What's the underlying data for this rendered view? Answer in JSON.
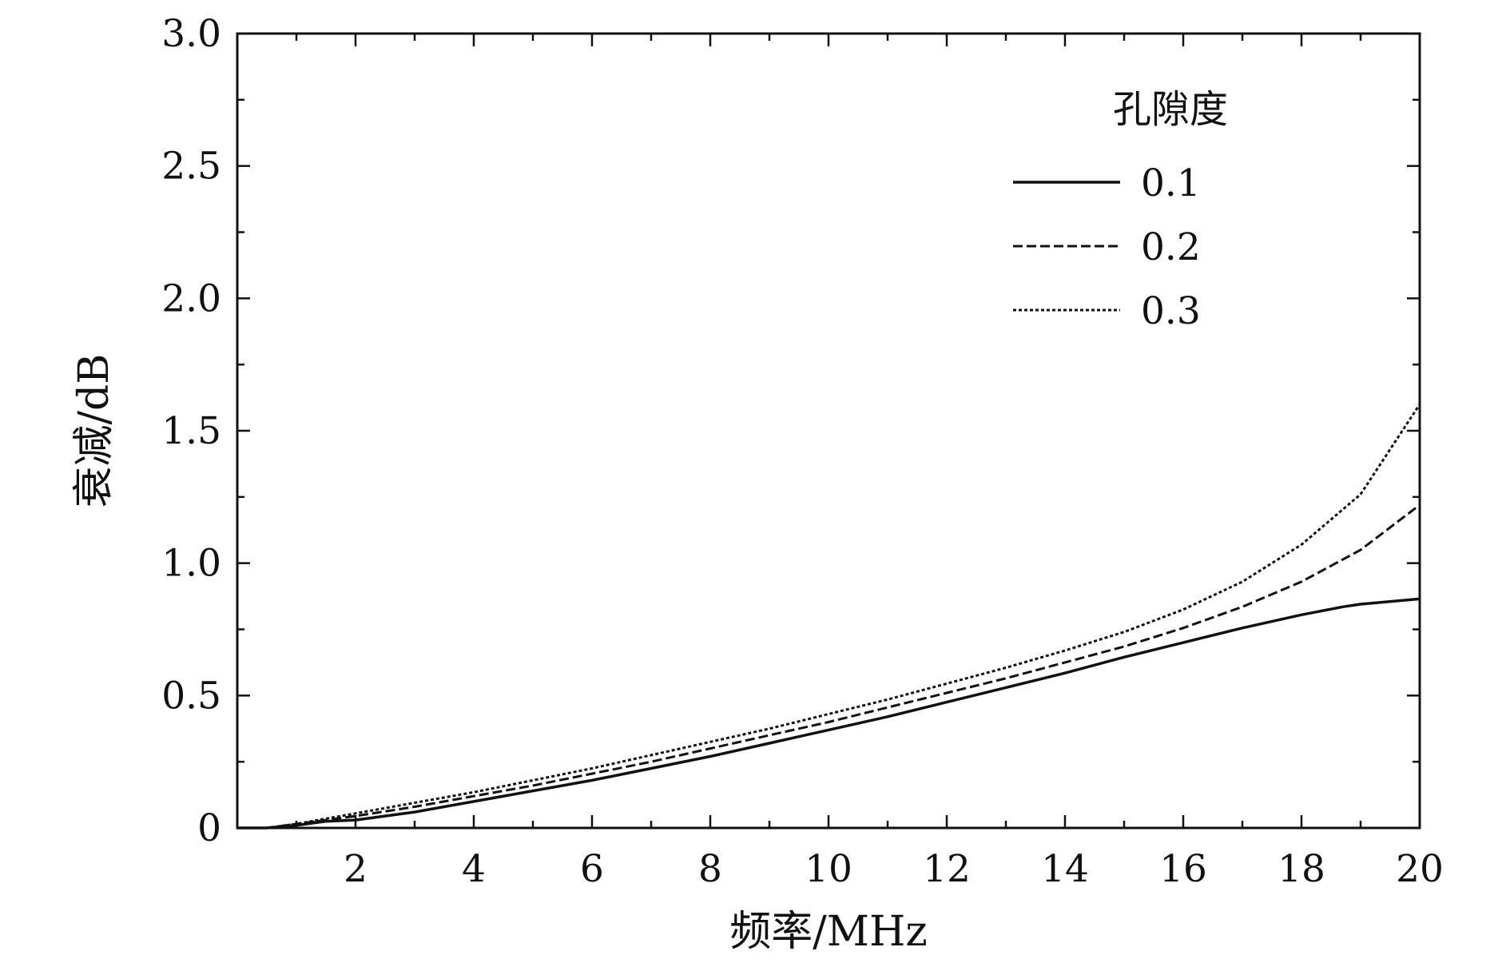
{
  "chart_data": {
    "type": "line",
    "xlabel": "频率/MHz",
    "ylabel": "衰减/dB",
    "xlim": [
      0,
      20
    ],
    "ylim": [
      0,
      3.0
    ],
    "x_ticks": [
      2,
      4,
      6,
      8,
      10,
      12,
      14,
      16,
      18,
      20
    ],
    "x_tick_labels": [
      "2",
      "4",
      "6",
      "8",
      "10",
      "12",
      "14",
      "16",
      "18",
      "20"
    ],
    "y_ticks": [
      0,
      0.5,
      1.0,
      1.5,
      2.0,
      2.5,
      3.0
    ],
    "y_tick_labels": [
      "0",
      "0.5",
      "1.0",
      "1.5",
      "2.0",
      "2.5",
      "3.0"
    ],
    "grid": false,
    "legend": {
      "title": "孔隙度",
      "placement": "top-right"
    },
    "series": [
      {
        "name": "0.1",
        "line_style": "solid",
        "x": [
          0,
          0.5,
          1,
          1.5,
          2,
          3,
          4,
          5,
          6,
          7,
          8,
          9,
          10,
          11,
          12,
          13,
          14,
          15,
          16,
          17,
          18,
          18.7,
          19,
          20
        ],
        "y": [
          0,
          0.0,
          0.01,
          0.025,
          0.03,
          0.06,
          0.1,
          0.14,
          0.18,
          0.225,
          0.27,
          0.32,
          0.37,
          0.42,
          0.475,
          0.53,
          0.585,
          0.645,
          0.7,
          0.755,
          0.805,
          0.835,
          0.845,
          0.865
        ]
      },
      {
        "name": "0.2",
        "line_style": "dashed",
        "x": [
          0,
          0.5,
          1,
          1.5,
          2,
          3,
          4,
          5,
          6,
          7,
          8,
          9,
          10,
          11,
          12,
          13,
          14,
          15,
          16,
          17,
          18,
          19,
          20
        ],
        "y": [
          0,
          0.0,
          0.015,
          0.03,
          0.045,
          0.08,
          0.12,
          0.16,
          0.205,
          0.25,
          0.3,
          0.35,
          0.4,
          0.455,
          0.51,
          0.565,
          0.625,
          0.685,
          0.755,
          0.835,
          0.93,
          1.05,
          1.22
        ]
      },
      {
        "name": "0.3",
        "line_style": "dotted",
        "x": [
          0,
          0.5,
          1,
          1.5,
          2,
          3,
          4,
          5,
          6,
          7,
          8,
          9,
          10,
          11,
          12,
          13,
          14,
          15,
          16,
          17,
          18,
          19,
          20
        ],
        "y": [
          0,
          0.0,
          0.015,
          0.035,
          0.055,
          0.095,
          0.135,
          0.18,
          0.225,
          0.275,
          0.325,
          0.375,
          0.43,
          0.485,
          0.545,
          0.605,
          0.67,
          0.74,
          0.825,
          0.93,
          1.07,
          1.26,
          1.6
        ]
      }
    ]
  }
}
